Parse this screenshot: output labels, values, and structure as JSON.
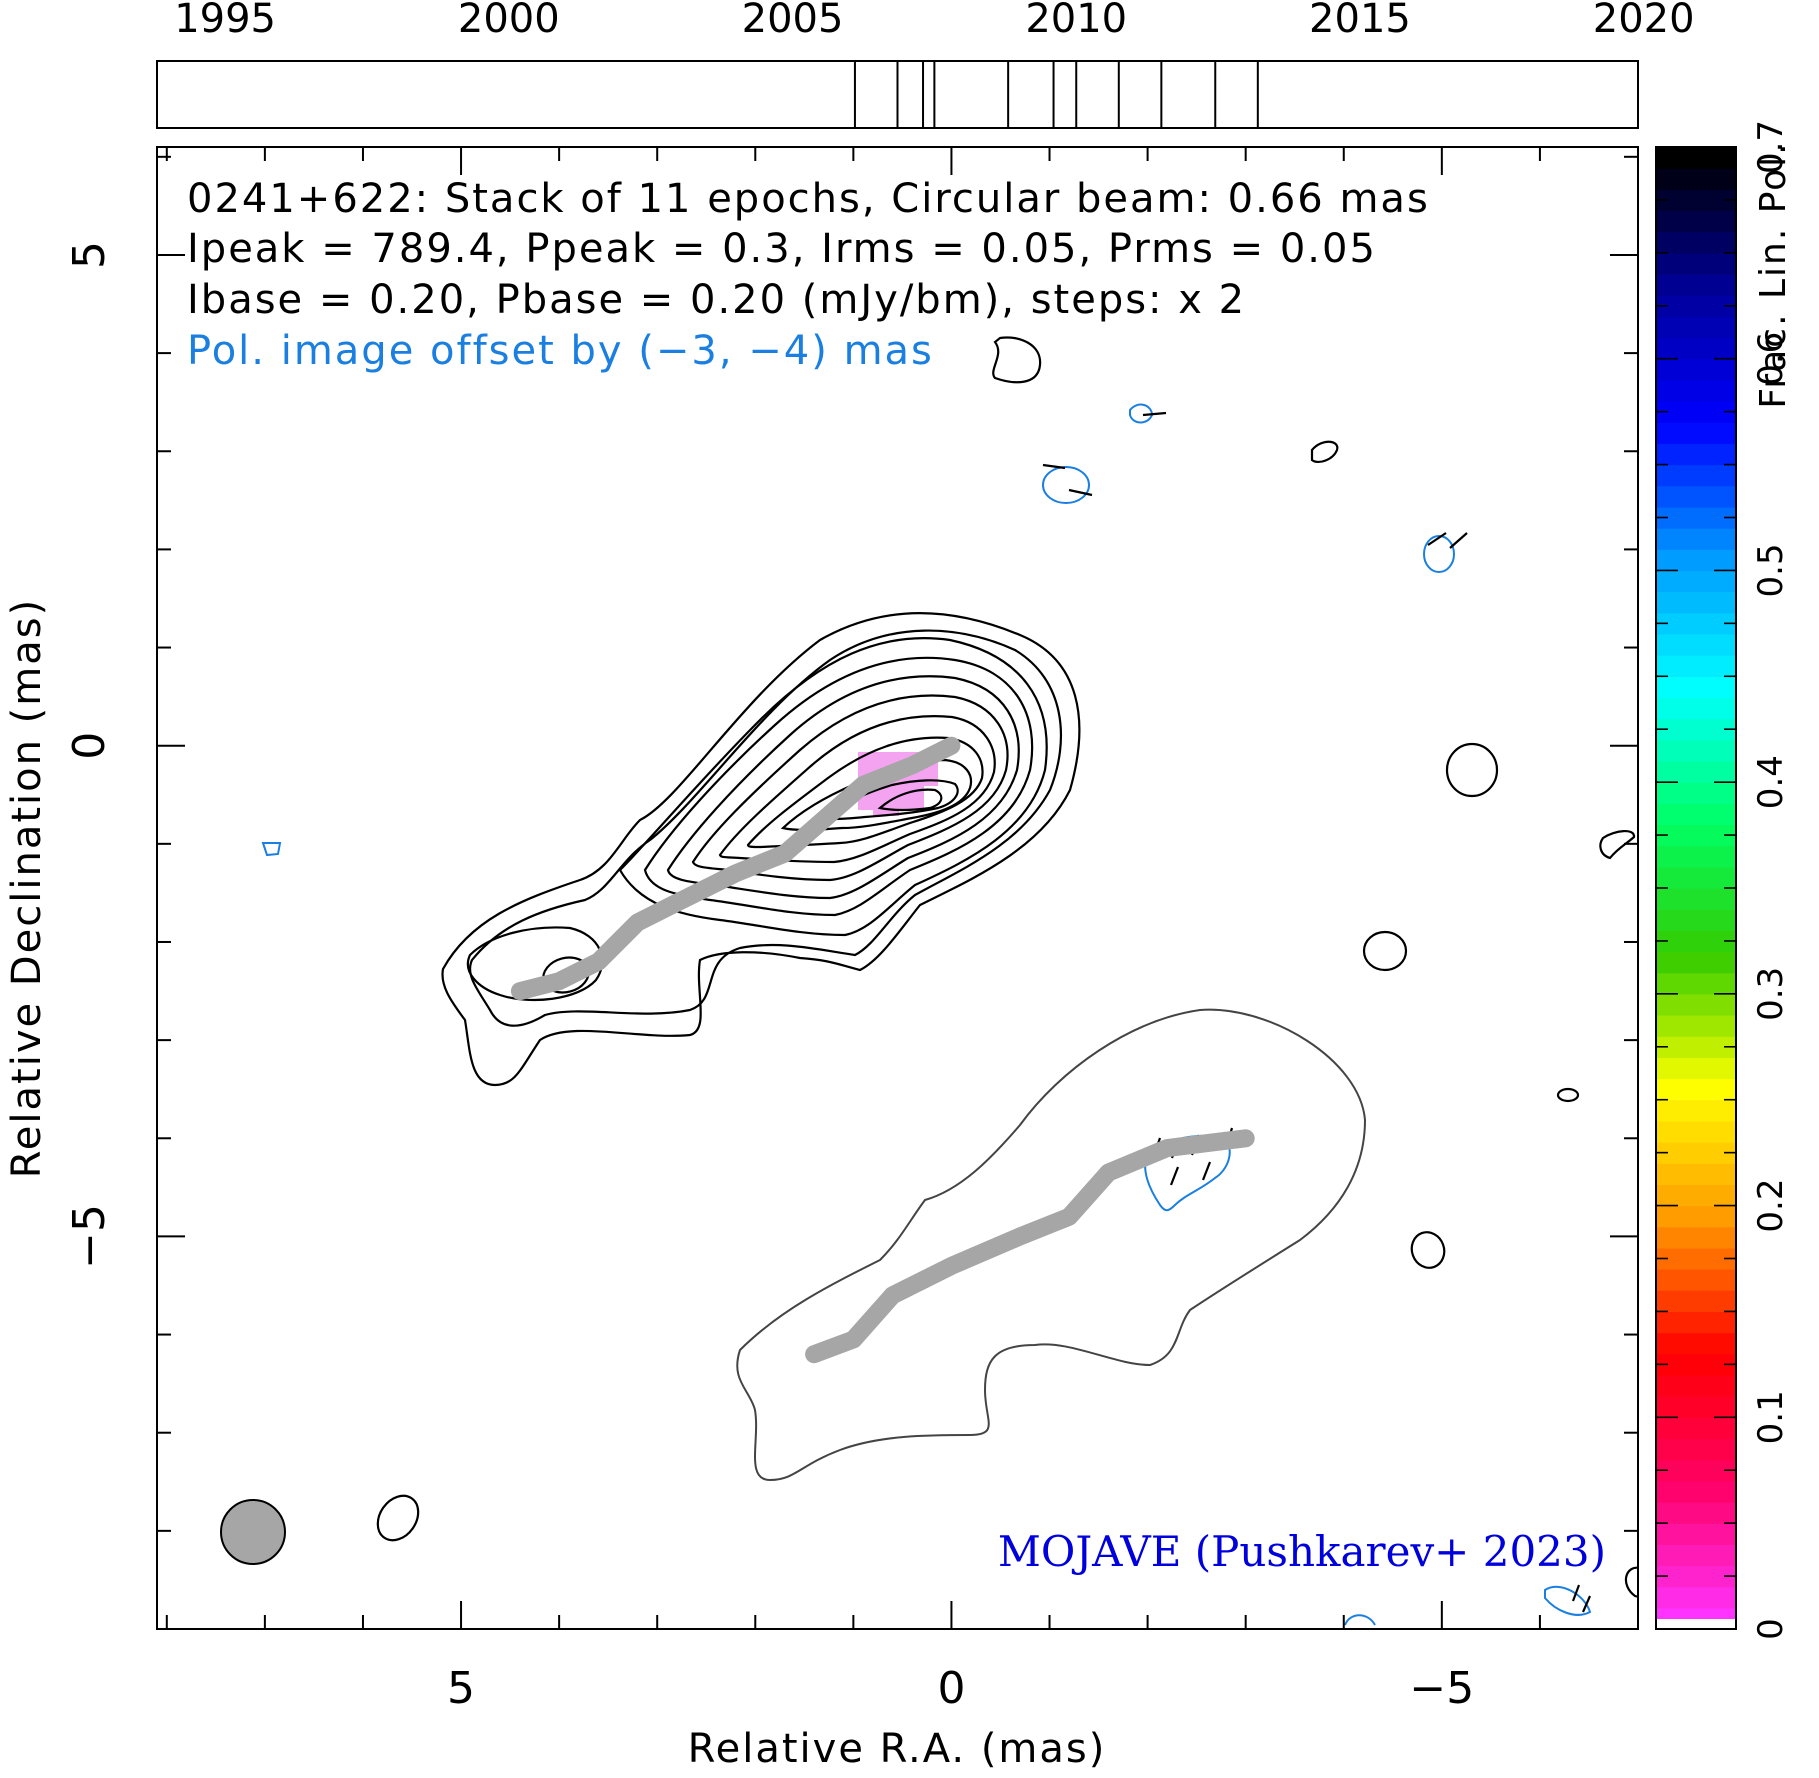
{
  "chart_data": {
    "type": "contour",
    "title_lines": [
      "0241+622: Stack of 11 epochs, Circular beam: 0.66 mas",
      "Ipeak = 789.4, Ppeak = 0.3, Irms = 0.05, Prms = 0.05",
      "Ibase = 0.20, Pbase = 0.20 (mJy/bm), steps: x 2"
    ],
    "offset_note": "Pol. image offset by (−3, −4) mas",
    "credit": "MOJAVE (Pushkarev+ 2023)",
    "xlabel": "Relative R.A. (mas)",
    "ylabel": "Relative Declination (mas)",
    "colorbar_label": "Frac. Lin. Pol.",
    "xlim": [
      8.1,
      -7.0
    ],
    "ylim": [
      -9.0,
      6.1
    ],
    "x_ticks": [
      5,
      0,
      -5
    ],
    "x_tick_labels": [
      "5",
      "0",
      "−5"
    ],
    "y_ticks": [
      5,
      0,
      -5
    ],
    "y_tick_labels": [
      "5",
      "0",
      "−5"
    ],
    "colorbar": {
      "range": [
        0,
        0.7
      ],
      "ticks": [
        0,
        0.1,
        0.2,
        0.3,
        0.4,
        0.5,
        0.6,
        0.7
      ],
      "tick_labels": [
        "0",
        "0.1",
        "0.2",
        "0.3",
        "0.4",
        "0.5",
        "0.6",
        "0.7"
      ],
      "colors": [
        "#ff33ff",
        "#ff0066",
        "#ff0000",
        "#ff9900",
        "#ffff00",
        "#33cc00",
        "#00ff66",
        "#00ffff",
        "#0099ff",
        "#0000ff",
        "#000099",
        "#000000"
      ]
    },
    "epoch_axis": {
      "range": [
        1993.8,
        2019.9
      ],
      "ticks": [
        1995,
        2000,
        2005,
        2010,
        2015,
        2020
      ],
      "tick_labels": [
        "1995",
        "2000",
        "2005",
        "2010",
        "2015",
        "2020"
      ],
      "epochs": [
        2006.1,
        2006.85,
        2007.3,
        2007.5,
        2008.8,
        2009.6,
        2010.0,
        2010.75,
        2011.5,
        2012.45,
        2013.2
      ]
    },
    "ridge_line_I": [
      [
        4.4,
        -2.5
      ],
      [
        4.0,
        -2.4
      ],
      [
        3.6,
        -2.2
      ],
      [
        3.2,
        -1.8
      ],
      [
        2.8,
        -1.6
      ],
      [
        2.2,
        -1.3
      ],
      [
        1.7,
        -1.1
      ],
      [
        1.3,
        -0.75
      ],
      [
        0.9,
        -0.4
      ],
      [
        0.4,
        -0.2
      ],
      [
        0.0,
        0.0
      ]
    ],
    "ridge_line_P": [
      [
        1.4,
        -6.2
      ],
      [
        1.0,
        -6.05
      ],
      [
        0.6,
        -5.6
      ],
      [
        0.0,
        -5.3
      ],
      [
        -0.7,
        -5.0
      ],
      [
        -1.2,
        -4.8
      ],
      [
        -1.6,
        -4.35
      ],
      [
        -2.2,
        -4.1
      ],
      [
        -3.0,
        -4.0
      ]
    ],
    "beam_fwhm_mas": 0.66,
    "color_scheme": {
      "stokes_i_contours": "#000000",
      "pol_contours": "#1a7fe0",
      "pol_offset_contour": "#444444",
      "ridge_line": "#a6a6a6",
      "frac_pol_pixels": "#f4a3f0",
      "credit_text": "#0000dd",
      "offset_text": "#1a7fe0"
    }
  }
}
